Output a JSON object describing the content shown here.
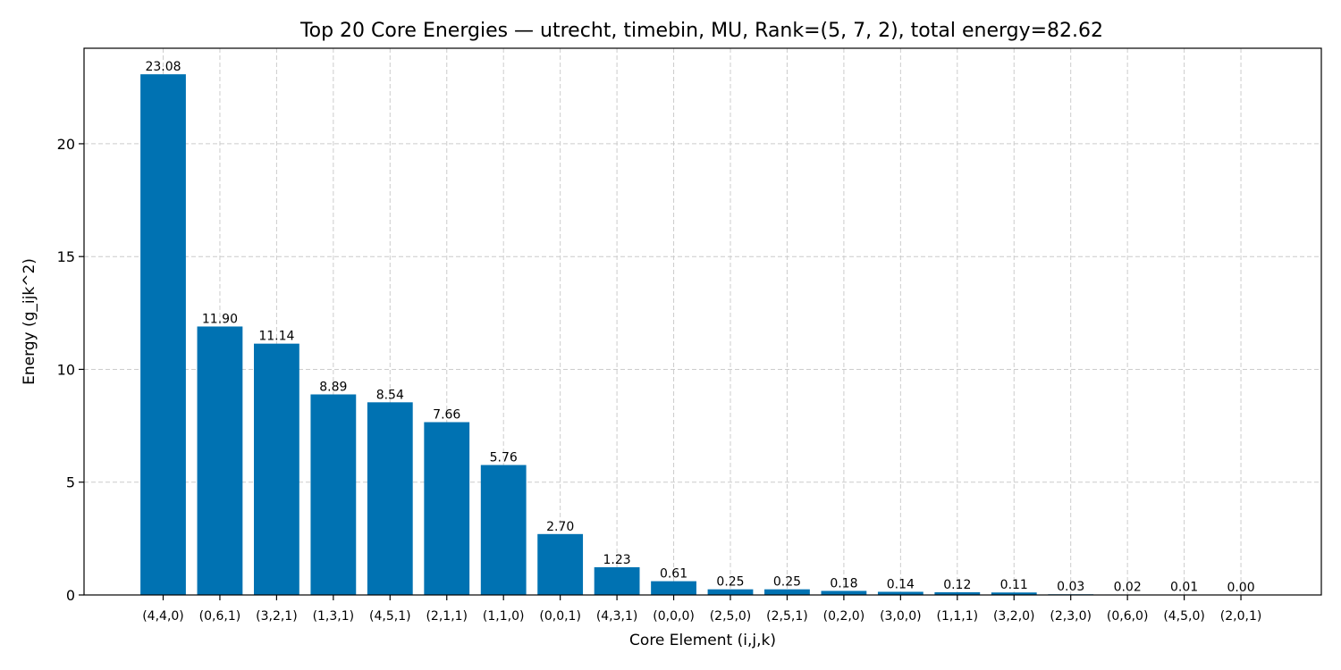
{
  "chart_data": {
    "type": "bar",
    "title": "Top 20 Core Energies — utrecht, timebin, MU, Rank=(5, 7, 2), total energy=82.62",
    "xlabel": "Core Element (i,j,k)",
    "ylabel": "Energy (g_ijk^2)",
    "categories": [
      "(4,4,0)",
      "(0,6,1)",
      "(3,2,1)",
      "(1,3,1)",
      "(4,5,1)",
      "(2,1,1)",
      "(1,1,0)",
      "(0,0,1)",
      "(4,3,1)",
      "(0,0,0)",
      "(2,5,0)",
      "(2,5,1)",
      "(0,2,0)",
      "(3,0,0)",
      "(1,1,1)",
      "(3,2,0)",
      "(2,3,0)",
      "(0,6,0)",
      "(4,5,0)",
      "(2,0,1)"
    ],
    "values": [
      23.08,
      11.9,
      11.14,
      8.89,
      8.54,
      7.66,
      5.76,
      2.7,
      1.23,
      0.61,
      0.25,
      0.25,
      0.18,
      0.14,
      0.12,
      0.11,
      0.03,
      0.02,
      0.01,
      0.0
    ],
    "value_labels": [
      "23.08",
      "11.90",
      "11.14",
      "8.89",
      "8.54",
      "7.66",
      "5.76",
      "2.70",
      "1.23",
      "0.61",
      "0.25",
      "0.25",
      "0.18",
      "0.14",
      "0.12",
      "0.11",
      "0.03",
      "0.02",
      "0.01",
      "0.00"
    ],
    "ylim": [
      0,
      24.234
    ],
    "yticks": [
      0,
      5,
      10,
      15,
      20
    ],
    "ytick_labels": [
      "0",
      "5",
      "10",
      "15",
      "20"
    ],
    "grid": true,
    "grid_style": "dashed",
    "bar_color": "#0072b2",
    "grid_color": "#cccccc"
  }
}
